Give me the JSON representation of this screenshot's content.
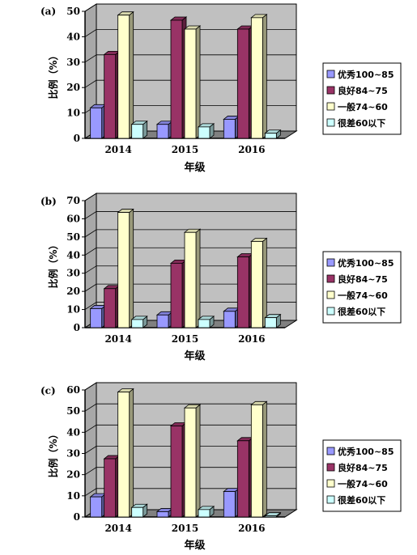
{
  "chart_data": [
    {
      "type": "bar",
      "panel_label": "(a)",
      "categories": [
        "2014",
        "2015",
        "2016"
      ],
      "series": [
        {
          "name": "优秀100~85",
          "values": [
            12,
            5.5,
            7.5
          ]
        },
        {
          "name": "良好84~75",
          "values": [
            33,
            46.5,
            43
          ]
        },
        {
          "name": "一般74~60",
          "values": [
            48.5,
            43,
            47.5
          ]
        },
        {
          "name": "很差60以下",
          "values": [
            5.5,
            4.5,
            2
          ]
        }
      ],
      "xlabel": "年级",
      "ylabel": "比例（%）",
      "ylim": [
        0,
        50
      ],
      "yticks": [
        0,
        10,
        20,
        30,
        40,
        50
      ],
      "grid": true,
      "legend": "right"
    },
    {
      "type": "bar",
      "panel_label": "(b)",
      "categories": [
        "2014",
        "2015",
        "2016"
      ],
      "series": [
        {
          "name": "优秀100~85",
          "values": [
            10.5,
            7,
            9
          ]
        },
        {
          "name": "良好84~75",
          "values": [
            21.5,
            35.5,
            39
          ]
        },
        {
          "name": "一般74~60",
          "values": [
            63.5,
            52.5,
            47.5
          ]
        },
        {
          "name": "很差60以下",
          "values": [
            4.5,
            4.5,
            5.5
          ]
        }
      ],
      "xlabel": "年级",
      "ylabel": "比例（%）",
      "ylim": [
        0,
        70
      ],
      "yticks": [
        0,
        10,
        20,
        30,
        40,
        50,
        60,
        70
      ],
      "grid": true,
      "legend": "right"
    },
    {
      "type": "bar",
      "panel_label": "(c)",
      "categories": [
        "2014",
        "2015",
        "2016"
      ],
      "series": [
        {
          "name": "优秀100~85",
          "values": [
            9.5,
            2.5,
            12
          ]
        },
        {
          "name": "良好84~75",
          "values": [
            27.5,
            43,
            36
          ]
        },
        {
          "name": "一般74~60",
          "values": [
            59,
            51.5,
            53
          ]
        },
        {
          "name": "很差60以下",
          "values": [
            4.5,
            3.5,
            0.5
          ]
        }
      ],
      "xlabel": "年级",
      "ylabel": "比例（%）",
      "ylim": [
        0,
        60
      ],
      "yticks": [
        0,
        10,
        20,
        30,
        40,
        50,
        60
      ],
      "grid": true,
      "legend": "right"
    }
  ],
  "colors": {
    "series": [
      "#9999ff",
      "#993366",
      "#ffffcc",
      "#ccffff"
    ],
    "plot_bg": "#c0c0c0",
    "grid": "#000000"
  }
}
